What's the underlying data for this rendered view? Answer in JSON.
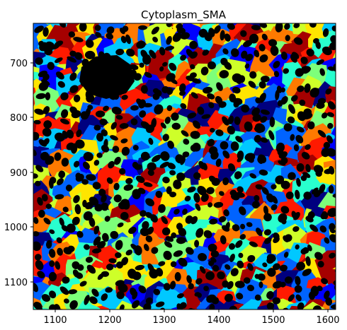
{
  "title": "Cytoplasm_SMA",
  "x_ticks": [
    "1100",
    "1200",
    "1300",
    "1400",
    "1500",
    "1600"
  ],
  "y_ticks": [
    "700",
    "800",
    "900",
    "1000",
    "1100"
  ],
  "axes": {
    "xlim": [
      1058,
      1612
    ],
    "ylim": [
      1150,
      632
    ]
  },
  "colormap": [
    "#00007f",
    "#0000ff",
    "#0063ff",
    "#00c8ff",
    "#29ffce",
    "#7dff7a",
    "#ceff29",
    "#ffe500",
    "#ff7a00",
    "#ff1a00",
    "#a50000"
  ],
  "colors": {
    "nucleus": "#000000",
    "frame": "#000000",
    "background": "#ffffff"
  }
}
